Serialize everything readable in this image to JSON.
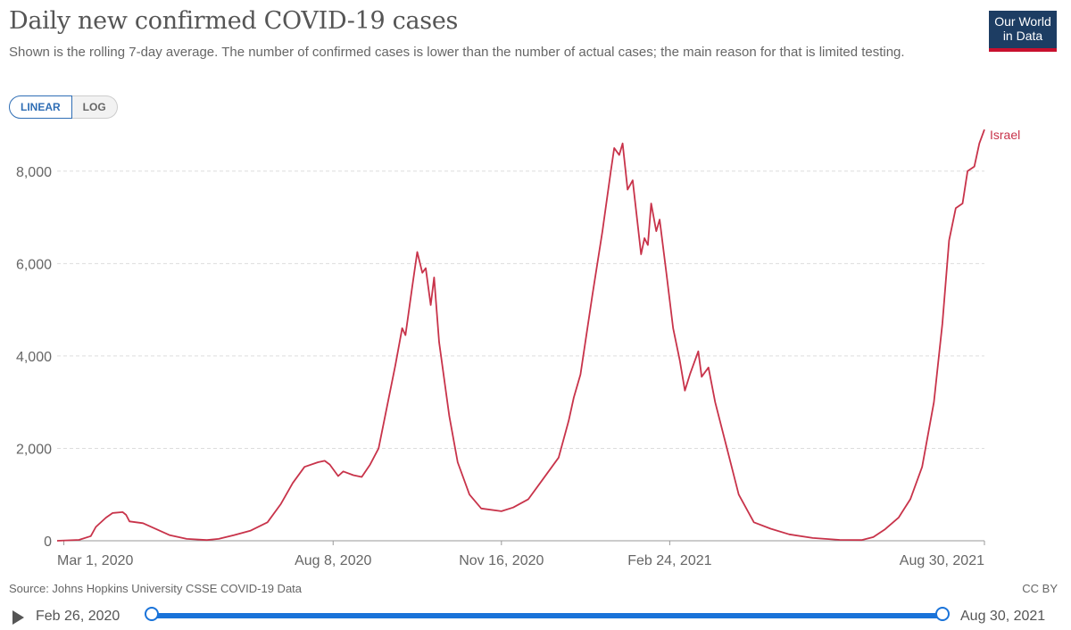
{
  "header": {
    "title": "Daily new confirmed COVID-19 cases",
    "subtitle": "Shown is the rolling 7-day average. The number of confirmed cases is lower than the number of actual cases; the main reason for that is limited testing.",
    "logo_line1": "Our World",
    "logo_line2": "in Data"
  },
  "scale_toggle": {
    "linear": "LINEAR",
    "log": "LOG",
    "selected": "LINEAR"
  },
  "footer": {
    "source": "Source: Johns Hopkins University CSSE COVID-19 Data",
    "license": "CC BY"
  },
  "timeline": {
    "start": "Feb 26, 2020",
    "end": "Aug 30, 2021"
  },
  "colors": {
    "line": "#c8334a",
    "accent": "#1a73d9",
    "brand": "#1d3d63"
  },
  "chart_data": {
    "type": "line",
    "x_ticks": [
      "Mar 1, 2020",
      "Aug 8, 2020",
      "Nov 16, 2020",
      "Feb 24, 2021",
      "Aug 30, 2021"
    ],
    "y_ticks": [
      "0",
      "2,000",
      "4,000",
      "6,000",
      "8,000"
    ],
    "ylim": [
      0,
      9000
    ],
    "xlim": [
      "2020-02-26",
      "2021-08-30"
    ],
    "grid": true,
    "series": [
      {
        "name": "Israel",
        "points": [
          [
            "2020-02-26",
            0
          ],
          [
            "2020-03-10",
            20
          ],
          [
            "2020-03-17",
            100
          ],
          [
            "2020-03-20",
            300
          ],
          [
            "2020-03-26",
            500
          ],
          [
            "2020-03-30",
            600
          ],
          [
            "2020-04-05",
            620
          ],
          [
            "2020-04-07",
            560
          ],
          [
            "2020-04-09",
            420
          ],
          [
            "2020-04-17",
            380
          ],
          [
            "2020-04-25",
            250
          ],
          [
            "2020-05-03",
            120
          ],
          [
            "2020-05-13",
            40
          ],
          [
            "2020-05-25",
            15
          ],
          [
            "2020-06-01",
            40
          ],
          [
            "2020-06-10",
            120
          ],
          [
            "2020-06-20",
            220
          ],
          [
            "2020-06-30",
            400
          ],
          [
            "2020-07-08",
            800
          ],
          [
            "2020-07-15",
            1250
          ],
          [
            "2020-07-22",
            1600
          ],
          [
            "2020-07-30",
            1700
          ],
          [
            "2020-08-03",
            1730
          ],
          [
            "2020-08-06",
            1650
          ],
          [
            "2020-08-11",
            1400
          ],
          [
            "2020-08-14",
            1500
          ],
          [
            "2020-08-20",
            1420
          ],
          [
            "2020-08-25",
            1380
          ],
          [
            "2020-08-30",
            1650
          ],
          [
            "2020-09-04",
            2000
          ],
          [
            "2020-09-09",
            2900
          ],
          [
            "2020-09-14",
            3800
          ],
          [
            "2020-09-18",
            4600
          ],
          [
            "2020-09-20",
            4450
          ],
          [
            "2020-09-24",
            5500
          ],
          [
            "2020-09-27",
            6250
          ],
          [
            "2020-09-30",
            5800
          ],
          [
            "2020-10-02",
            5900
          ],
          [
            "2020-10-05",
            5100
          ],
          [
            "2020-10-07",
            5700
          ],
          [
            "2020-10-10",
            4300
          ],
          [
            "2020-10-16",
            2700
          ],
          [
            "2020-10-21",
            1700
          ],
          [
            "2020-10-28",
            1000
          ],
          [
            "2020-11-04",
            700
          ],
          [
            "2020-11-16",
            640
          ],
          [
            "2020-11-23",
            720
          ],
          [
            "2020-12-02",
            900
          ],
          [
            "2020-12-10",
            1300
          ],
          [
            "2020-12-20",
            1800
          ],
          [
            "2020-12-26",
            2600
          ],
          [
            "2020-12-29",
            3100
          ],
          [
            "2021-01-02",
            3600
          ],
          [
            "2021-01-09",
            5300
          ],
          [
            "2021-01-15",
            6700
          ],
          [
            "2021-01-20",
            8000
          ],
          [
            "2021-01-22",
            8500
          ],
          [
            "2021-01-25",
            8350
          ],
          [
            "2021-01-27",
            8600
          ],
          [
            "2021-01-30",
            7600
          ],
          [
            "2021-02-02",
            7800
          ],
          [
            "2021-02-07",
            6200
          ],
          [
            "2021-02-09",
            6550
          ],
          [
            "2021-02-11",
            6400
          ],
          [
            "2021-02-13",
            7300
          ],
          [
            "2021-02-16",
            6700
          ],
          [
            "2021-02-18",
            6950
          ],
          [
            "2021-02-22",
            5800
          ],
          [
            "2021-02-26",
            4600
          ],
          [
            "2021-03-02",
            3900
          ],
          [
            "2021-03-05",
            3250
          ],
          [
            "2021-03-08",
            3600
          ],
          [
            "2021-03-13",
            4100
          ],
          [
            "2021-03-15",
            3550
          ],
          [
            "2021-03-19",
            3750
          ],
          [
            "2021-03-23",
            3000
          ],
          [
            "2021-03-30",
            2000
          ],
          [
            "2021-04-06",
            1000
          ],
          [
            "2021-04-15",
            400
          ],
          [
            "2021-04-25",
            260
          ],
          [
            "2021-05-06",
            140
          ],
          [
            "2021-05-20",
            60
          ],
          [
            "2021-06-05",
            20
          ],
          [
            "2021-06-18",
            15
          ],
          [
            "2021-06-25",
            80
          ],
          [
            "2021-07-02",
            250
          ],
          [
            "2021-07-10",
            500
          ],
          [
            "2021-07-17",
            900
          ],
          [
            "2021-07-24",
            1600
          ],
          [
            "2021-07-31",
            3000
          ],
          [
            "2021-08-05",
            4700
          ],
          [
            "2021-08-09",
            6500
          ],
          [
            "2021-08-13",
            7200
          ],
          [
            "2021-08-17",
            7300
          ],
          [
            "2021-08-20",
            8000
          ],
          [
            "2021-08-24",
            8100
          ],
          [
            "2021-08-27",
            8600
          ],
          [
            "2021-08-30",
            8900
          ]
        ]
      }
    ]
  }
}
